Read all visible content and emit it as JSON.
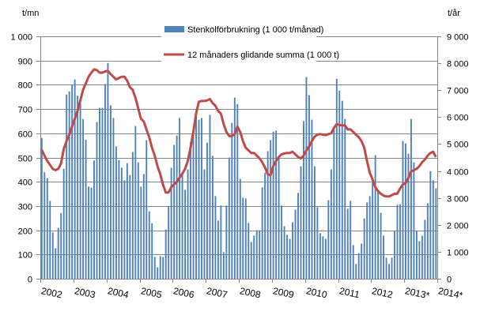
{
  "chart_data": {
    "type": "bar+line",
    "left_axis_unit": "t/mn",
    "right_axis_unit": "t/år",
    "left_ylim": [
      0,
      1000
    ],
    "left_ticks": [
      "0",
      "100",
      "200",
      "300",
      "400",
      "500",
      "600",
      "700",
      "800",
      "900",
      "1 000"
    ],
    "right_ylim": [
      0,
      9000
    ],
    "right_ticks": [
      "0",
      "1 000",
      "2 000",
      "3 000",
      "4 000",
      "5 000",
      "6 000",
      "7 000",
      "8 000",
      "9 000"
    ],
    "x_tick_labels": [
      "2002",
      "2003",
      "2004",
      "2005",
      "2006",
      "2007",
      "2008",
      "2009",
      "2010",
      "2011",
      "2012",
      "2013*",
      "2014*"
    ],
    "grid": "horizontal",
    "legend_position": "top",
    "colors": {
      "bars": "#4F81BD",
      "line": "#BE4B48",
      "grid": "#868686"
    },
    "series": [
      {
        "name": "Stenkolförbrukning (1 000 t/månad)",
        "type": "bar",
        "axis": "left",
        "values": [
          581,
          439,
          415,
          321,
          191,
          126,
          210,
          270,
          454,
          760,
          773,
          798,
          822,
          755,
          724,
          659,
          573,
          380,
          376,
          488,
          646,
          705,
          705,
          803,
          890,
          715,
          663,
          546,
          490,
          458,
          406,
          477,
          428,
          523,
          630,
          480,
          380,
          432,
          572,
          278,
          229,
          90,
          47,
          93,
          90,
          203,
          300,
          458,
          552,
          591,
          663,
          430,
          367,
          451,
          565,
          610,
          679,
          656,
          663,
          451,
          562,
          676,
          507,
          341,
          240,
          302,
          110,
          302,
          500,
          643,
          747,
          721,
          412,
          334,
          331,
          230,
          152,
          178,
          200,
          200,
          377,
          438,
          526,
          572,
          607,
          611,
          500,
          302,
          217,
          181,
          165,
          233,
          285,
          354,
          464,
          650,
          832,
          757,
          656,
          464,
          295,
          188,
          175,
          165,
          324,
          451,
          616,
          825,
          776,
          734,
          659,
          289,
          321,
          139,
          61,
          106,
          145,
          249,
          315,
          341,
          400,
          510,
          367,
          272,
          178,
          87,
          61,
          87,
          197,
          305,
          308,
          568,
          558,
          516,
          659,
          480,
          197,
          155,
          178,
          243,
          311,
          444,
          406,
          373
        ]
      },
      {
        "name": "12 månaders glidande summa (1 000 t)",
        "type": "line",
        "axis": "right",
        "values": [
          4785,
          4570,
          4375,
          4230,
          4080,
          4030,
          4080,
          4280,
          4815,
          5110,
          5350,
          5645,
          5940,
          6230,
          6620,
          7010,
          7255,
          7500,
          7650,
          7775,
          7745,
          7650,
          7650,
          7695,
          7715,
          7600,
          7500,
          7400,
          7450,
          7500,
          7500,
          7355,
          7110,
          7010,
          6720,
          6330,
          5940,
          5840,
          5545,
          5255,
          4865,
          4570,
          4180,
          3885,
          3495,
          3200,
          3200,
          3400,
          3500,
          3600,
          3750,
          3900,
          4080,
          4375,
          4865,
          5450,
          6130,
          6570,
          6600,
          6600,
          6620,
          6670,
          6520,
          6425,
          6230,
          6130,
          5740,
          5450,
          5300,
          5300,
          5370,
          5645,
          5450,
          5110,
          4865,
          4765,
          4670,
          4670,
          4570,
          4470,
          4325,
          4130,
          3885,
          3840,
          4180,
          4375,
          4520,
          4620,
          4650,
          4670,
          4670,
          4715,
          4620,
          4520,
          4470,
          4570,
          4765,
          4910,
          5110,
          5275,
          5350,
          5370,
          5350,
          5330,
          5370,
          5400,
          5595,
          5740,
          5710,
          5690,
          5690,
          5545,
          5545,
          5450,
          5350,
          5255,
          5110,
          4865,
          4375,
          3935,
          3690,
          3400,
          3250,
          3155,
          3085,
          3055,
          3055,
          3105,
          3155,
          3155,
          3350,
          3495,
          3545,
          3740,
          3985,
          4030,
          4080,
          4180,
          4325,
          4425,
          4570,
          4670,
          4715,
          4520
        ]
      }
    ]
  }
}
